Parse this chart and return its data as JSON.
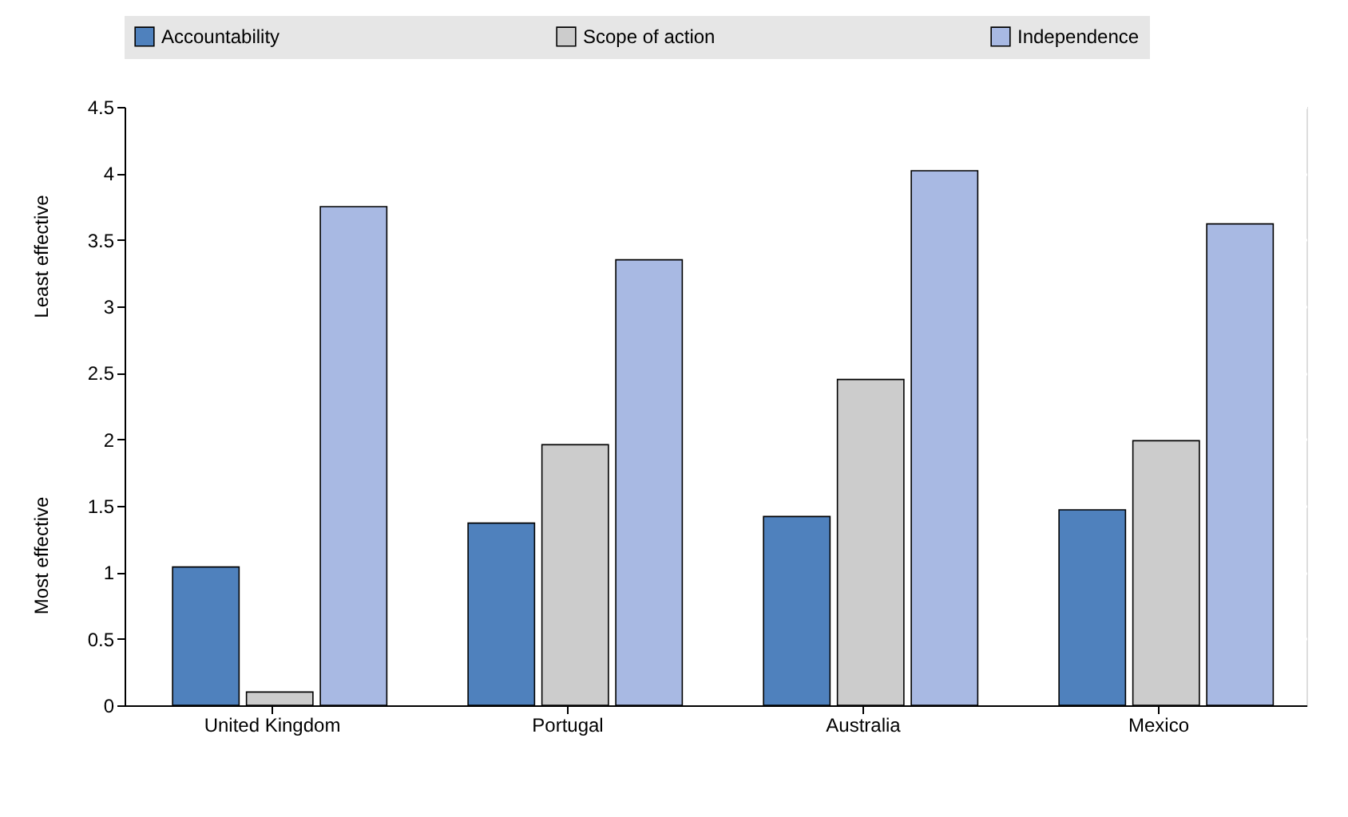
{
  "chart_data": {
    "type": "bar",
    "categories": [
      "United Kingdom",
      "Portugal",
      "Australia",
      "Mexico"
    ],
    "series": [
      {
        "name": "Accountability",
        "color": "#4f81bd",
        "values": [
          1.04,
          1.37,
          1.42,
          1.47
        ]
      },
      {
        "name": "Scope of action",
        "color": "#cccccc",
        "values": [
          0.1,
          1.96,
          2.45,
          1.99
        ]
      },
      {
        "name": "Independence",
        "color": "#a8b9e3",
        "values": [
          3.75,
          3.35,
          4.02,
          3.62
        ]
      }
    ],
    "ylim": [
      0,
      4.5
    ],
    "yticks": [
      0,
      0.5,
      1,
      1.5,
      2,
      2.5,
      3,
      3.5,
      4,
      4.5
    ],
    "grid": "y",
    "legend": "top",
    "annotations": [
      "Least effective",
      "Most effective"
    ]
  }
}
